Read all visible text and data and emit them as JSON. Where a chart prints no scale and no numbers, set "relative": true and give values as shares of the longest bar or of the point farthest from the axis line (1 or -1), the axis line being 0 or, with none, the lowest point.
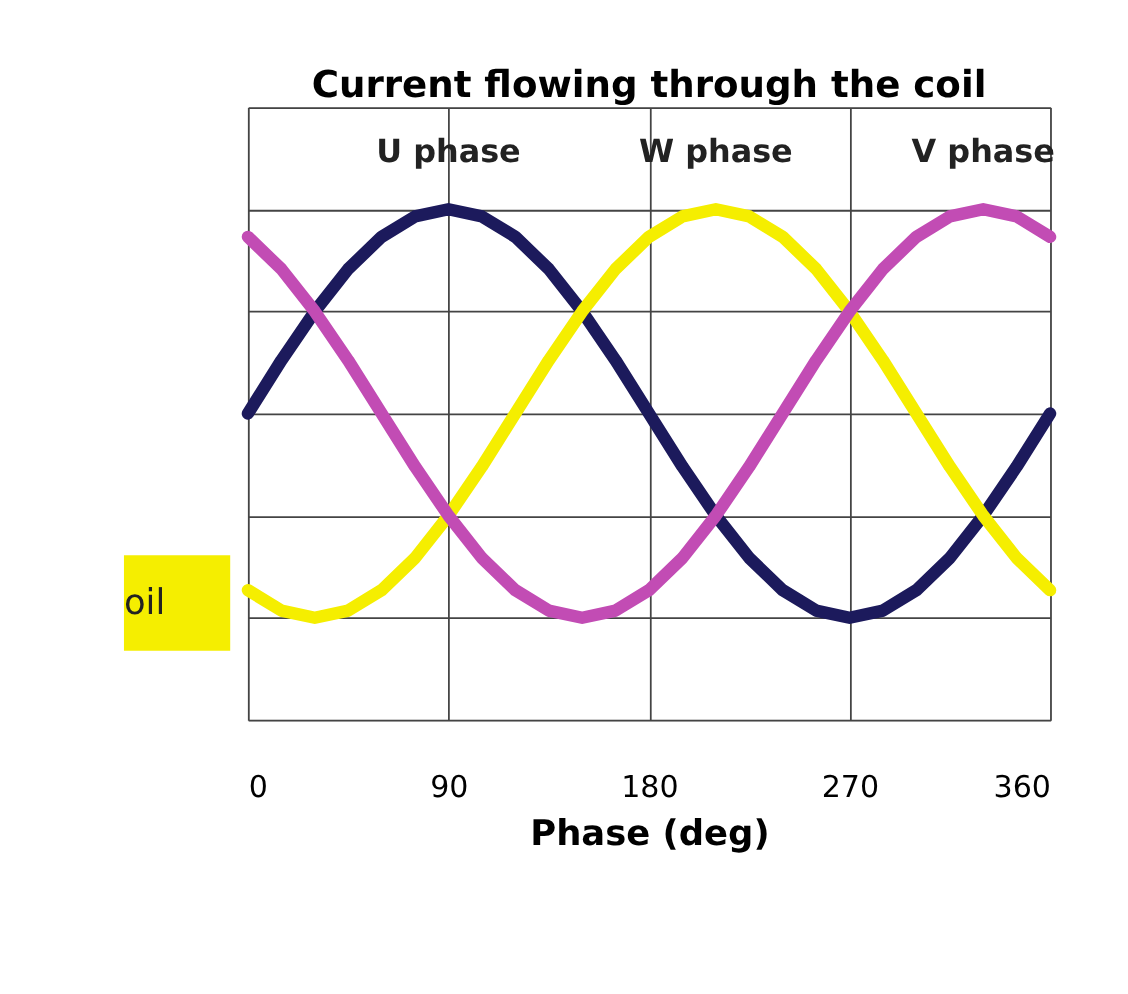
{
  "chart_data": {
    "type": "line",
    "title": "Current flowing through the coil",
    "xlabel": "Phase (deg)",
    "relative": true,
    "grid": true,
    "legend": false,
    "marker": "none",
    "line_style": "solid",
    "x": [
      0,
      15,
      30,
      45,
      60,
      75,
      90,
      105,
      120,
      135,
      150,
      165,
      180,
      195,
      210,
      225,
      240,
      255,
      270,
      285,
      300,
      315,
      330,
      345,
      360
    ],
    "xlim": [
      0,
      360
    ],
    "xticks": [
      0,
      90,
      180,
      270,
      360
    ],
    "series": [
      {
        "name": "U phase",
        "color": "#1c1a5c",
        "values": [
          0.6,
          0.704,
          0.8,
          0.883,
          0.946,
          0.986,
          1.0,
          0.986,
          0.946,
          0.883,
          0.8,
          0.704,
          0.6,
          0.496,
          0.4,
          0.317,
          0.254,
          0.214,
          0.2,
          0.214,
          0.254,
          0.317,
          0.4,
          0.496,
          0.6
        ]
      },
      {
        "name": "W phase",
        "color": "#f5ee00",
        "values": [
          0.254,
          0.214,
          0.2,
          0.214,
          0.254,
          0.317,
          0.4,
          0.496,
          0.6,
          0.704,
          0.8,
          0.883,
          0.946,
          0.986,
          1.0,
          0.986,
          0.946,
          0.883,
          0.8,
          0.704,
          0.6,
          0.496,
          0.4,
          0.317,
          0.254
        ]
      },
      {
        "name": "V phase",
        "color": "#c24cb4",
        "values": [
          0.946,
          0.883,
          0.8,
          0.704,
          0.6,
          0.496,
          0.4,
          0.317,
          0.254,
          0.214,
          0.2,
          0.214,
          0.254,
          0.317,
          0.4,
          0.496,
          0.6,
          0.704,
          0.8,
          0.883,
          0.946,
          0.986,
          1.0,
          0.986,
          0.946
        ]
      }
    ],
    "annotations": [
      "oil"
    ]
  }
}
